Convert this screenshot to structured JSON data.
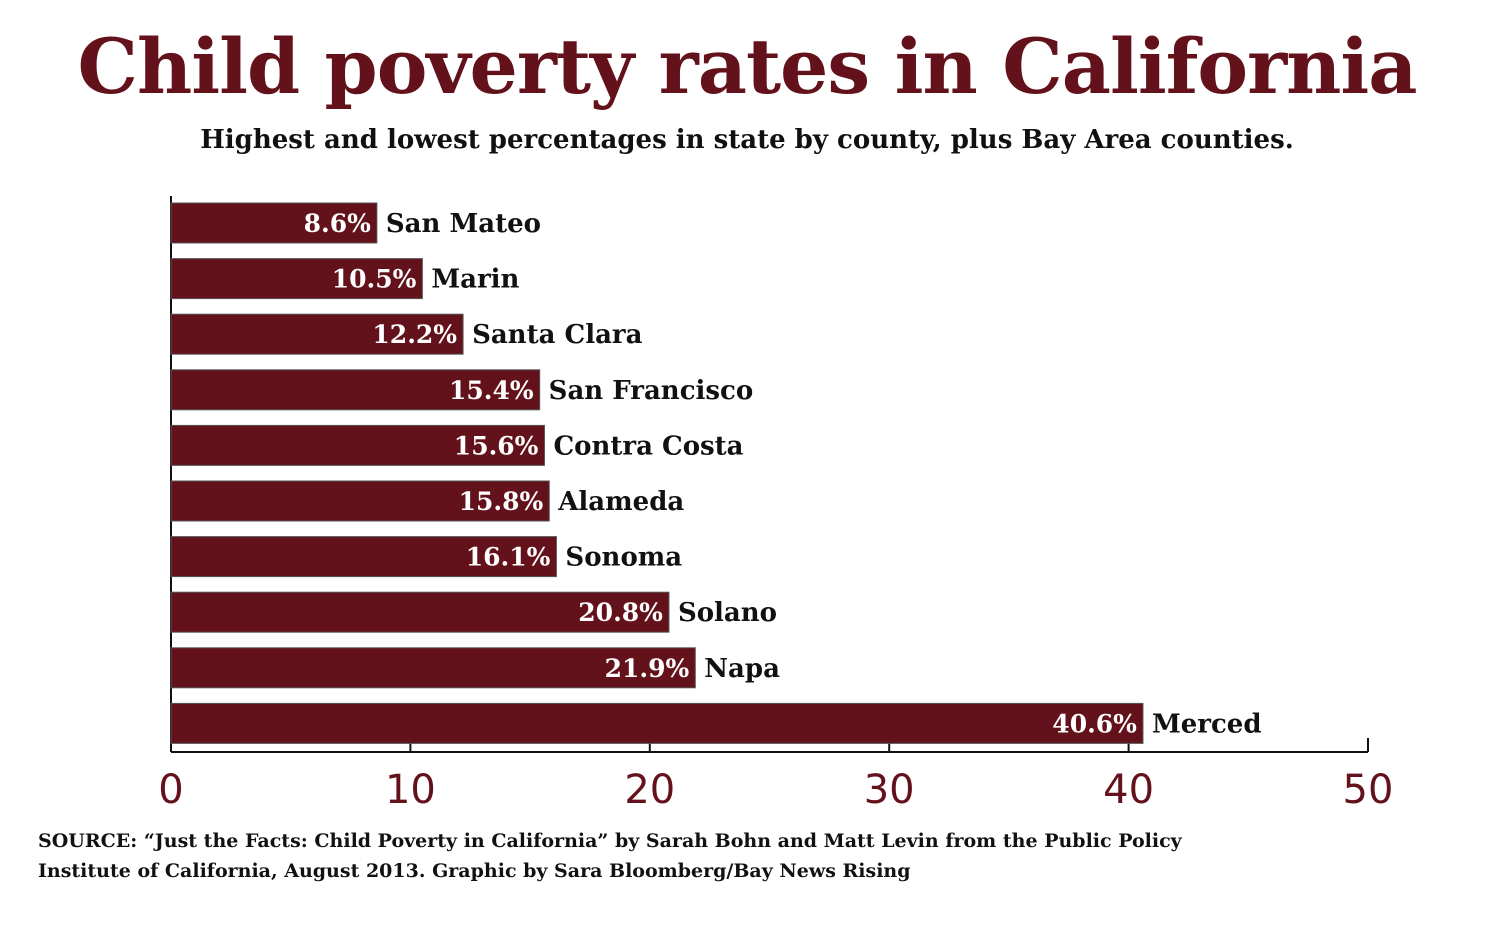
{
  "chart_data": {
    "type": "bar",
    "orientation": "horizontal",
    "title": "Child poverty rates in California",
    "subtitle": "Highest and lowest percentages in state by county, plus Bay Area counties.",
    "categories": [
      "San Mateo",
      "Marin",
      "Santa Clara",
      "San Francisco",
      "Contra Costa",
      "Alameda",
      "Sonoma",
      "Solano",
      "Napa",
      "Merced"
    ],
    "values": [
      8.6,
      10.5,
      12.2,
      15.4,
      15.6,
      15.8,
      16.1,
      20.8,
      21.9,
      40.6
    ],
    "value_labels": [
      "8.6%",
      "10.5%",
      "12.2%",
      "15.4%",
      "15.6%",
      "15.8%",
      "16.1%",
      "20.8%",
      "21.9%",
      "40.6%"
    ],
    "xlim": [
      0,
      50
    ],
    "xticks": [
      0,
      10,
      20,
      30,
      40,
      50
    ],
    "xtick_labels": [
      "0",
      "10",
      "20",
      "30",
      "40",
      "50"
    ],
    "xlabel": "",
    "ylabel": "",
    "grid": false,
    "legend": "none",
    "colors": {
      "bar": "#63111a",
      "bar_label": "#ffffff",
      "category_label": "#111111",
      "tick_label": "#63111a",
      "axis": "#111111",
      "title": "#63111a"
    }
  },
  "source": {
    "line1": "SOURCE: “Just the Facts: Child Poverty in California” by Sarah Bohn and Matt Levin from the Public Policy",
    "line2": "Institute of California, August 2013. Graphic by Sara Bloomberg/Bay News Rising"
  }
}
